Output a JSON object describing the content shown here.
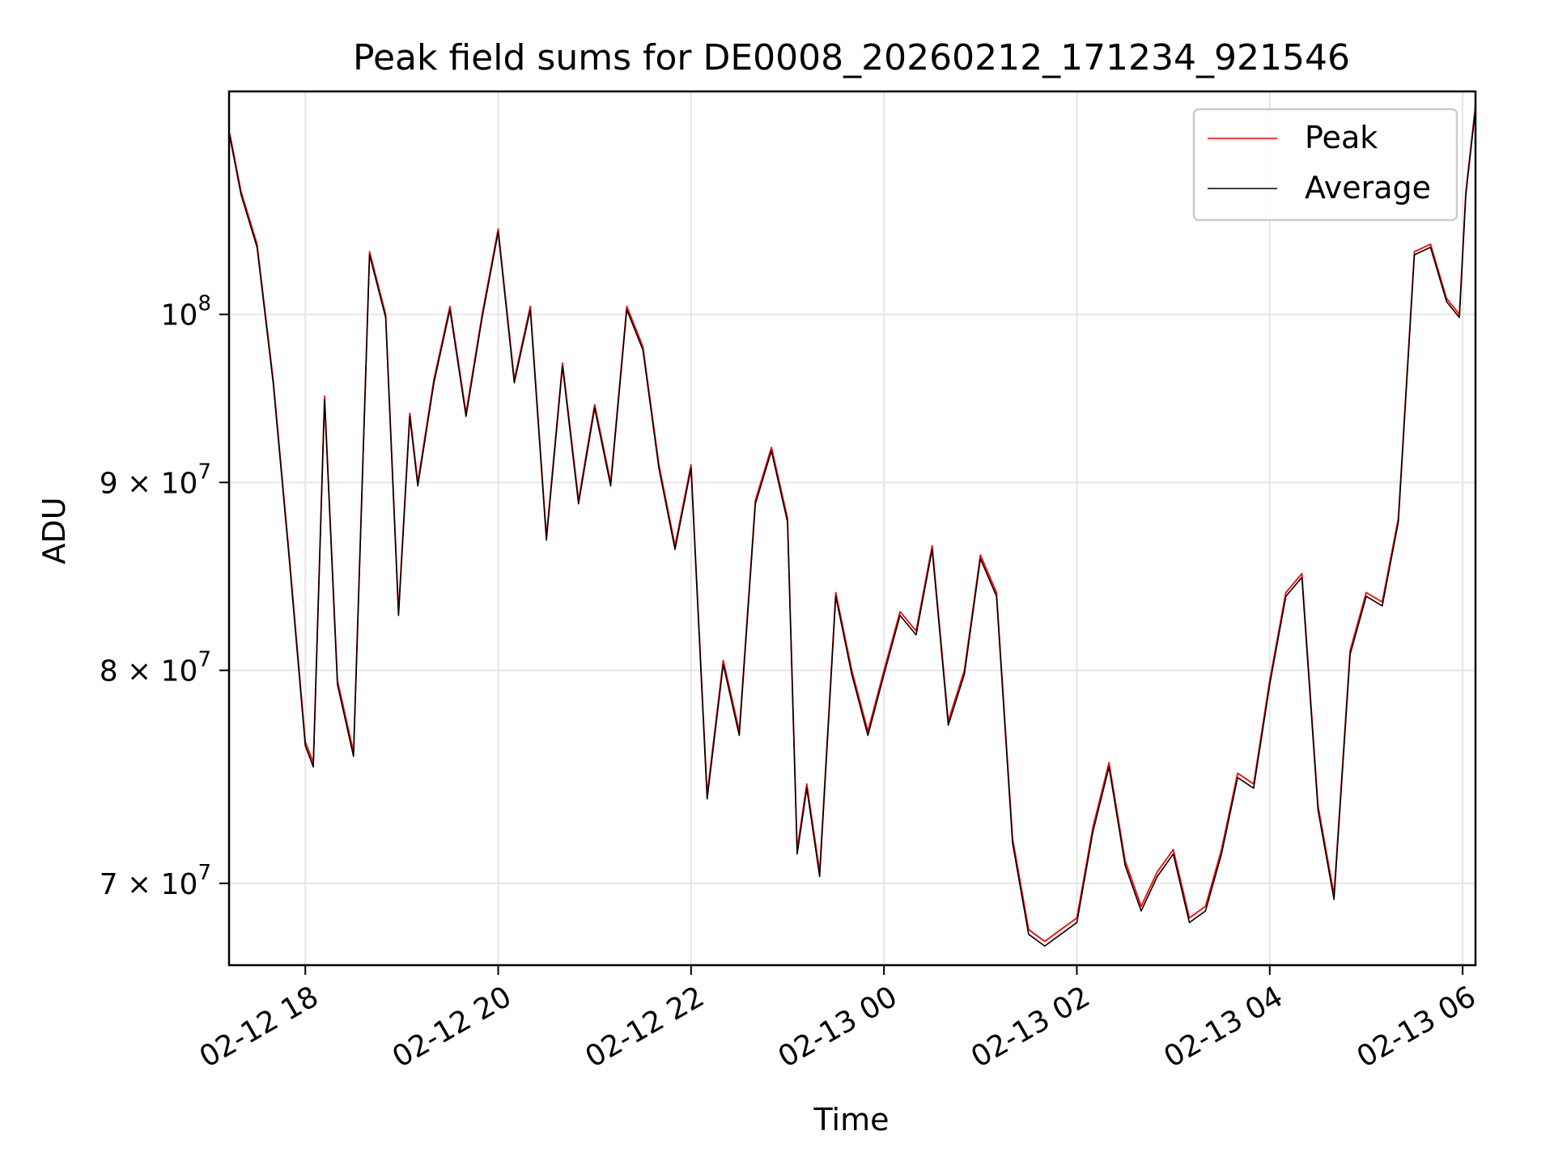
{
  "chart_data": {
    "type": "line",
    "title": "Peak field sums for DE0008_20260212_171234_921546",
    "xlabel": "Time",
    "ylabel": "ADU",
    "y_scale": "log",
    "xlim": [
      "2026-02-12T17:12:34",
      "2026-02-13T06:08:00"
    ],
    "ylim": [
      66500000,
      115000000
    ],
    "x_ticks": [
      "02-12 18",
      "02-12 20",
      "02-12 22",
      "02-13 00",
      "02-13 02",
      "02-13 04",
      "02-13 06"
    ],
    "y_ticks": [
      {
        "value": 70000000,
        "base": "7 × 10",
        "exp": "7"
      },
      {
        "value": 80000000,
        "base": "8 × 10",
        "exp": "7"
      },
      {
        "value": 90000000,
        "base": "9 × 10",
        "exp": "7"
      },
      {
        "value": 100000000,
        "base": "10",
        "exp": "8"
      }
    ],
    "grid": true,
    "legend_position": "top-right",
    "x": [
      "2026-02-12T17:13",
      "2026-02-12T17:20",
      "2026-02-12T17:30",
      "2026-02-12T17:40",
      "2026-02-12T17:50",
      "2026-02-12T18:00",
      "2026-02-12T18:05",
      "2026-02-12T18:12",
      "2026-02-12T18:20",
      "2026-02-12T18:30",
      "2026-02-12T18:40",
      "2026-02-12T18:50",
      "2026-02-12T18:58",
      "2026-02-12T19:05",
      "2026-02-12T19:10",
      "2026-02-12T19:20",
      "2026-02-12T19:30",
      "2026-02-12T19:40",
      "2026-02-12T19:50",
      "2026-02-12T20:00",
      "2026-02-12T20:10",
      "2026-02-12T20:20",
      "2026-02-12T20:30",
      "2026-02-12T20:40",
      "2026-02-12T20:50",
      "2026-02-12T21:00",
      "2026-02-12T21:10",
      "2026-02-12T21:20",
      "2026-02-12T21:30",
      "2026-02-12T21:40",
      "2026-02-12T21:50",
      "2026-02-12T22:00",
      "2026-02-12T22:10",
      "2026-02-12T22:20",
      "2026-02-12T22:30",
      "2026-02-12T22:40",
      "2026-02-12T22:50",
      "2026-02-12T23:00",
      "2026-02-12T23:06",
      "2026-02-12T23:12",
      "2026-02-12T23:20",
      "2026-02-12T23:30",
      "2026-02-12T23:40",
      "2026-02-12T23:50",
      "2026-02-13T00:00",
      "2026-02-13T00:10",
      "2026-02-13T00:20",
      "2026-02-13T00:30",
      "2026-02-13T00:40",
      "2026-02-13T00:50",
      "2026-02-13T01:00",
      "2026-02-13T01:10",
      "2026-02-13T01:20",
      "2026-02-13T01:30",
      "2026-02-13T01:40",
      "2026-02-13T01:50",
      "2026-02-13T02:00",
      "2026-02-13T02:10",
      "2026-02-13T02:20",
      "2026-02-13T02:30",
      "2026-02-13T02:40",
      "2026-02-13T02:50",
      "2026-02-13T03:00",
      "2026-02-13T03:10",
      "2026-02-13T03:20",
      "2026-02-13T03:30",
      "2026-02-13T03:40",
      "2026-02-13T03:50",
      "2026-02-13T04:00",
      "2026-02-13T04:10",
      "2026-02-13T04:20",
      "2026-02-13T04:30",
      "2026-02-13T04:40",
      "2026-02-13T04:50",
      "2026-02-13T05:00",
      "2026-02-13T05:10",
      "2026-02-13T05:20",
      "2026-02-13T05:30",
      "2026-02-13T05:40",
      "2026-02-13T05:50",
      "2026-02-13T05:58",
      "2026-02-13T06:02",
      "2026-02-13T06:08"
    ],
    "series": [
      {
        "name": "Peak",
        "color": "#ff0000",
        "values": [
          112000000,
          108000000,
          104500000,
          96000000,
          86000000,
          76500000,
          75500000,
          95000000,
          79500000,
          76000000,
          104000000,
          100000000,
          83000000,
          94000000,
          90000000,
          96000000,
          100500000,
          94000000,
          100000000,
          105500000,
          96000000,
          100500000,
          87000000,
          97000000,
          89000000,
          94500000,
          90000000,
          100500000,
          98000000,
          91000000,
          86500000,
          91000000,
          74000000,
          80500000,
          77000000,
          89000000,
          92000000,
          88000000,
          71500000,
          74500000,
          70500000,
          84000000,
          80000000,
          77000000,
          80000000,
          83000000,
          82000000,
          86500000,
          77500000,
          80000000,
          86000000,
          84000000,
          72000000,
          68000000,
          67500000,
          68000000,
          68500000,
          72500000,
          75500000,
          71000000,
          69000000,
          70500000,
          71500000,
          68500000,
          69000000,
          71500000,
          75000000,
          74500000,
          79500000,
          84000000,
          85000000,
          73500000,
          69500000,
          81000000,
          84000000,
          83500000,
          88000000,
          104000000,
          104500000,
          101000000,
          100000000,
          108000000,
          114000000
        ]
      },
      {
        "name": "Average",
        "color": "#000000",
        "values": [
          111800000,
          107800000,
          104300000,
          95800000,
          85800000,
          76300000,
          75300000,
          94800000,
          79300000,
          75800000,
          103800000,
          99800000,
          82800000,
          93800000,
          89800000,
          95800000,
          100300000,
          93800000,
          99800000,
          105300000,
          95800000,
          100300000,
          86800000,
          96800000,
          88800000,
          94300000,
          89800000,
          100300000,
          97800000,
          90800000,
          86300000,
          90800000,
          73800000,
          80300000,
          76800000,
          88800000,
          91800000,
          87800000,
          71300000,
          74300000,
          70300000,
          83800000,
          79800000,
          76800000,
          79800000,
          82800000,
          81800000,
          86300000,
          77300000,
          79800000,
          85800000,
          83800000,
          71800000,
          67800000,
          67300000,
          67800000,
          68300000,
          72300000,
          75300000,
          70800000,
          68800000,
          70300000,
          71300000,
          68300000,
          68800000,
          71300000,
          74800000,
          74300000,
          79300000,
          83800000,
          84800000,
          73300000,
          69300000,
          80800000,
          83800000,
          83300000,
          87800000,
          103800000,
          104300000,
          100800000,
          99800000,
          107800000,
          113800000
        ]
      }
    ]
  }
}
